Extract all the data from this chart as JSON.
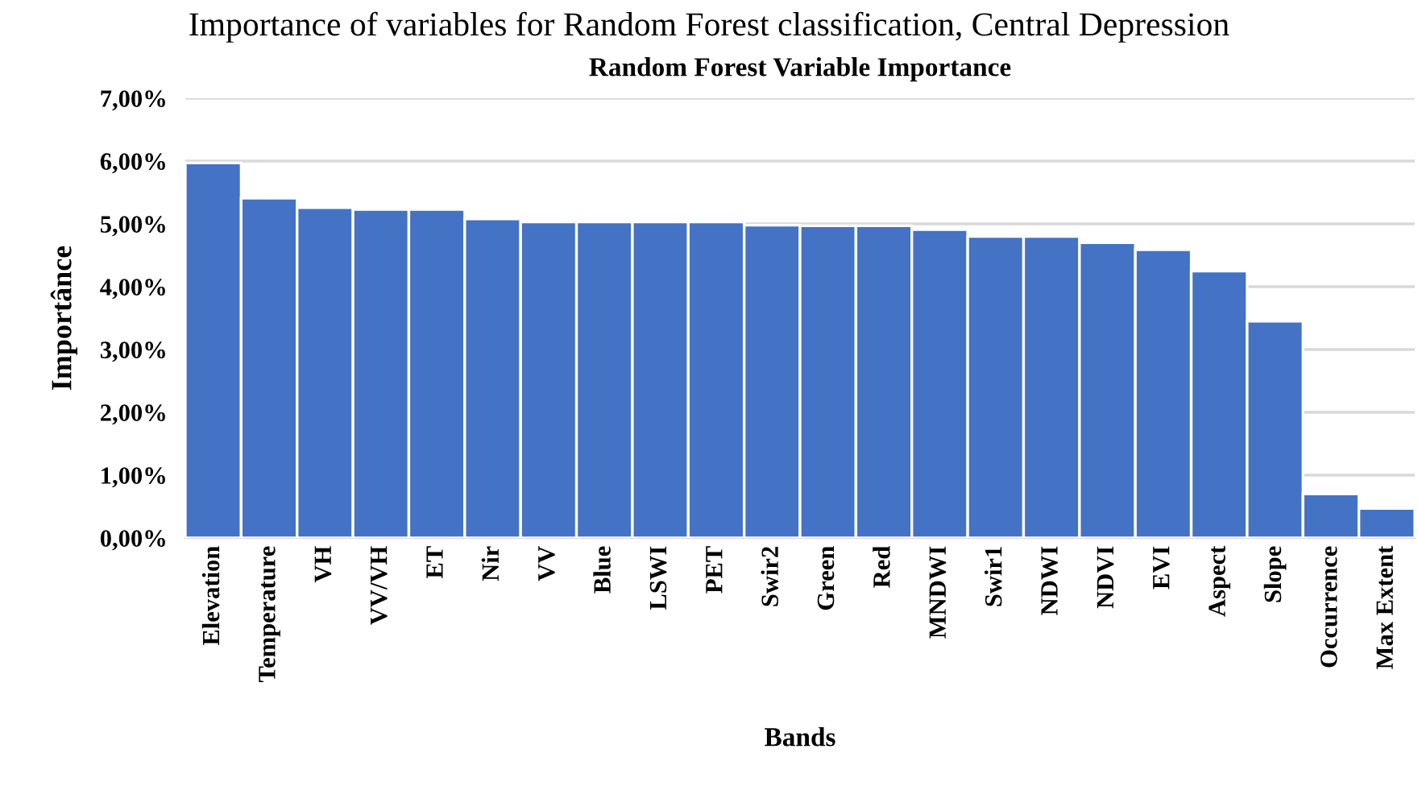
{
  "chart_data": {
    "type": "bar",
    "title": "Random Forest Variable Importance",
    "xlabel": "Bands",
    "ylabel": "Importânce",
    "annotations": [
      "Importance of variables for Random Forest classification, Central Depression"
    ],
    "categories": [
      "Elevation",
      "Temperature",
      "VH",
      "VV/VH",
      "ET",
      "Nir",
      "VV",
      "Blue",
      "LSWI",
      "PET",
      "Swir2",
      "Green",
      "Red",
      "MNDWI",
      "Swir1",
      "NDWI",
      "NDVI",
      "EVI",
      "Aspect",
      "Slope",
      "Occurrence",
      "Max Extent"
    ],
    "values": [
      5.97,
      5.41,
      5.26,
      5.23,
      5.23,
      5.08,
      5.03,
      5.03,
      5.03,
      5.03,
      4.98,
      4.97,
      4.97,
      4.91,
      4.8,
      4.8,
      4.7,
      4.59,
      4.25,
      3.45,
      0.7,
      0.47
    ],
    "color": "#4472c4",
    "ylim": [
      0,
      7
    ],
    "yticks": [
      {
        "value": 0,
        "label": "0,00%"
      },
      {
        "value": 1,
        "label": "1,00%"
      },
      {
        "value": 2,
        "label": "2,00%"
      },
      {
        "value": 3,
        "label": "3,00%"
      },
      {
        "value": 4,
        "label": "4,00%"
      },
      {
        "value": 5,
        "label": "5,00%"
      },
      {
        "value": 6,
        "label": "6,00%"
      },
      {
        "value": 7,
        "label": "7,00%"
      }
    ],
    "grid": "y"
  }
}
